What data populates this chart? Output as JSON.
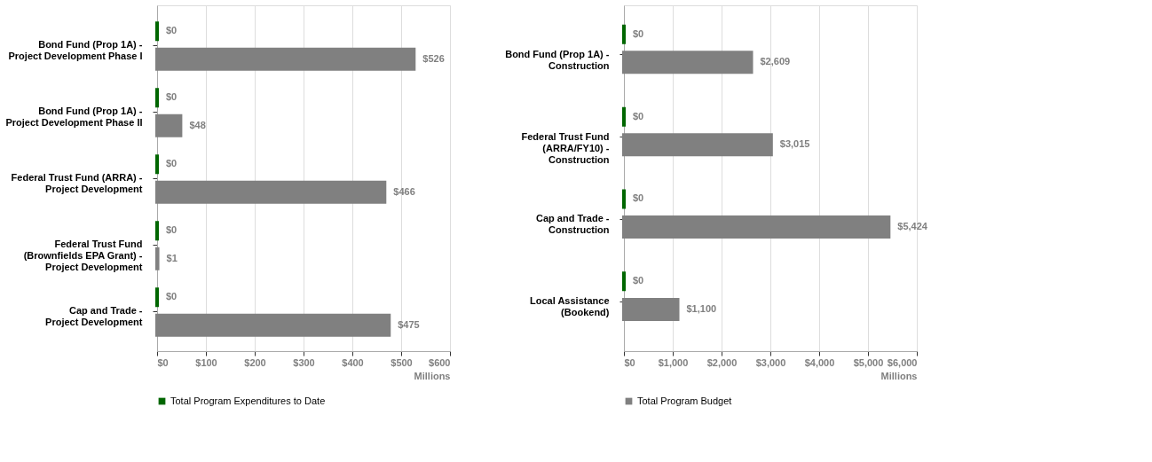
{
  "chart_data": [
    {
      "type": "bar",
      "orientation": "horizontal",
      "categories": [
        "Bond Fund (Prop 1A) -\nProject Development Phase I",
        "Bond Fund (Prop 1A) -\nProject Development Phase II",
        "Federal Trust Fund (ARRA) -\nProject Development",
        "Federal Trust Fund\n(Brownfields EPA Grant) -\nProject Development",
        "Cap and Trade -\nProject Development"
      ],
      "series": [
        {
          "name": "Total Program Expenditures to Date",
          "color": "#006600",
          "values": [
            0,
            0,
            0,
            0,
            0
          ],
          "value_labels": [
            "$0",
            "$0",
            "$0",
            "$0",
            "$0"
          ]
        },
        {
          "color": "#808080",
          "values": [
            526,
            48,
            466,
            1,
            475
          ],
          "value_labels": [
            "$526",
            "$48",
            "$466",
            "$1",
            "$475"
          ]
        }
      ],
      "xlabel": "Millions",
      "xlim": [
        0,
        600
      ],
      "xticks": [
        {
          "value": 0,
          "label": "$0"
        },
        {
          "value": 100,
          "label": "$100"
        },
        {
          "value": 200,
          "label": "$200"
        },
        {
          "value": 300,
          "label": "$300"
        },
        {
          "value": 400,
          "label": "$400"
        },
        {
          "value": 500,
          "label": "$500"
        },
        {
          "value": 600,
          "label": "$600"
        }
      ],
      "grid": "x",
      "legend": "bottom"
    },
    {
      "type": "bar",
      "orientation": "horizontal",
      "categories": [
        "Bond Fund (Prop 1A) -\nConstruction",
        "Federal Trust Fund\n(ARRA/FY10) -\nConstruction",
        "Cap and Trade -\nConstruction",
        "Local Assistance\n(Bookend)"
      ],
      "series": [
        {
          "color": "#006600",
          "values": [
            0,
            0,
            0,
            0
          ],
          "value_labels": [
            "$0",
            "$0",
            "$0",
            "$0"
          ]
        },
        {
          "name": "Total Program Budget",
          "color": "#808080",
          "values": [
            2609,
            3015,
            5424,
            1100
          ],
          "value_labels": [
            "$2,609",
            "$3,015",
            "$5,424",
            "$1,100"
          ]
        }
      ],
      "xlabel": "Millions",
      "xlim": [
        0,
        6000
      ],
      "xticks": [
        {
          "value": 0,
          "label": "$0"
        },
        {
          "value": 1000,
          "label": "$1,000"
        },
        {
          "value": 2000,
          "label": "$2,000"
        },
        {
          "value": 3000,
          "label": "$3,000"
        },
        {
          "value": 4000,
          "label": "$4,000"
        },
        {
          "value": 5000,
          "label": "$5,000"
        },
        {
          "value": 6000,
          "label": "$6,000"
        }
      ],
      "grid": "x",
      "legend": "bottom"
    }
  ]
}
